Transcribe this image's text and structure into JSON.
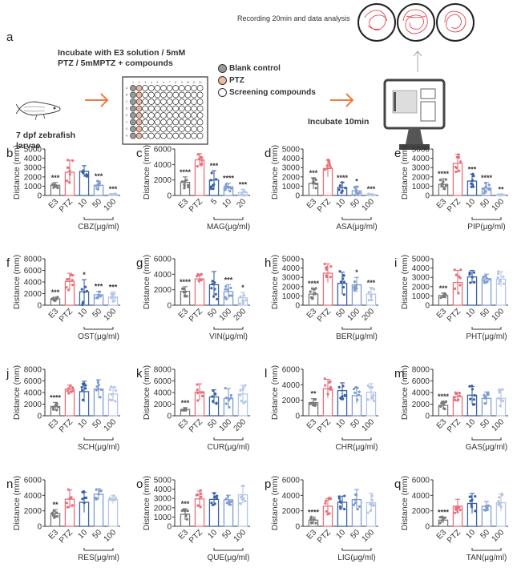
{
  "schematic": {
    "panel_label": "a",
    "step1_label": "7 dpf zebrafish larvae",
    "step2_label": "Incubate with E3 solution / 5mM PTZ / 5mMPTZ + compounds",
    "legend": [
      {
        "label": "Blank control",
        "color": "#9a9a9a"
      },
      {
        "label": "PTZ",
        "color": "#f0b8a0"
      },
      {
        "label": "Screening compounds",
        "color": "#ffffff"
      }
    ],
    "plate_columns": [
      "1",
      "2",
      "3",
      "4",
      "5",
      "6",
      "7",
      "8",
      "9",
      "10",
      "11",
      "12"
    ],
    "plate_rows": [
      "A",
      "B",
      "C",
      "D",
      "E",
      "F",
      "G",
      "H"
    ],
    "step3_label": "Incubate 10min",
    "step4_label": "Recording 20min and data analysis",
    "arrow_color": "#f07a3a",
    "track_color": "#e0303a"
  },
  "chart_data": [
    {
      "panel": "b",
      "type": "bar",
      "compound": "CBZ",
      "xlabel": "CBZ(μg/ml)",
      "ylabel": "Distance (mm)",
      "ylim": [
        0,
        5000
      ],
      "yticks": [
        0,
        1000,
        2000,
        3000,
        4000,
        5000
      ],
      "categories": [
        "E3",
        "PTZ",
        "10",
        "50",
        "100"
      ],
      "values": [
        1100,
        2500,
        2600,
        1100,
        100
      ],
      "errors": [
        300,
        1300,
        600,
        450,
        80
      ],
      "significance": [
        "***",
        "",
        "",
        "***",
        "***"
      ]
    },
    {
      "panel": "c",
      "type": "bar",
      "compound": "MAG",
      "xlabel": "MAG(μg/ml)",
      "ylabel": "Distance (mm)",
      "ylim": [
        0,
        6000
      ],
      "yticks": [
        0,
        2000,
        4000,
        6000
      ],
      "categories": [
        "E3",
        "PTZ",
        "5",
        "10",
        "20"
      ],
      "values": [
        1700,
        4600,
        2000,
        1100,
        400
      ],
      "errors": [
        700,
        800,
        1200,
        500,
        400
      ],
      "significance": [
        "****",
        "",
        "***",
        "****",
        "***"
      ]
    },
    {
      "panel": "d",
      "type": "bar",
      "compound": "ASA",
      "xlabel": "ASA(μg/ml)",
      "ylabel": "Distance (mm)",
      "ylim": [
        0,
        5000
      ],
      "yticks": [
        0,
        1000,
        2000,
        3000,
        4000,
        5000
      ],
      "categories": [
        "E3",
        "PTZ",
        "10",
        "50",
        "100"
      ],
      "values": [
        1300,
        2900,
        850,
        500,
        100
      ],
      "errors": [
        600,
        900,
        550,
        500,
        80
      ],
      "significance": [
        "***",
        "",
        "****",
        "*",
        "***"
      ]
    },
    {
      "panel": "e",
      "type": "bar",
      "compound": "PIP",
      "xlabel": "PIP(μg/ml)",
      "ylabel": "Distance (mm)",
      "ylim": [
        0,
        5000
      ],
      "yticks": [
        0,
        1000,
        2000,
        3000,
        4000,
        5000
      ],
      "categories": [
        "E3",
        "PTZ",
        "10",
        "50",
        "100"
      ],
      "values": [
        1200,
        3450,
        1550,
        800,
        80
      ],
      "errors": [
        600,
        1000,
        750,
        600,
        60
      ],
      "significance": [
        "****",
        "",
        "***",
        "****",
        "**"
      ]
    },
    {
      "panel": "f",
      "type": "bar",
      "compound": "OST",
      "xlabel": "OST(μg/ml)",
      "ylabel": "Distance (mm)",
      "ylim": [
        0,
        8000
      ],
      "yticks": [
        0,
        2000,
        4000,
        6000,
        8000
      ],
      "categories": [
        "E3",
        "PTZ",
        "10",
        "50",
        "100"
      ],
      "values": [
        1100,
        4100,
        2300,
        1800,
        1400
      ],
      "errors": [
        300,
        1400,
        2100,
        600,
        900
      ],
      "significance": [
        "***",
        "",
        "*",
        "***",
        "***"
      ]
    },
    {
      "panel": "g",
      "type": "bar",
      "compound": "VIN",
      "xlabel": "VIN(μg/ml)",
      "ylabel": "Distance (mm)",
      "ylim": [
        0,
        6000
      ],
      "yticks": [
        0,
        2000,
        4000,
        6000
      ],
      "categories": [
        "E3",
        "PTZ",
        "50",
        "100",
        "200"
      ],
      "values": [
        1800,
        3400,
        2650,
        1750,
        950
      ],
      "errors": [
        600,
        600,
        1700,
        900,
        700
      ],
      "significance": [
        "****",
        "",
        "",
        "***",
        "*"
      ]
    },
    {
      "panel": "h",
      "type": "bar",
      "compound": "BER",
      "xlabel": "BER(μg/ml)",
      "ylabel": "Distance (mm)",
      "ylim": [
        0,
        5000
      ],
      "yticks": [
        0,
        1000,
        2000,
        3000,
        4000,
        5000
      ],
      "categories": [
        "E3",
        "PTZ",
        "50",
        "100",
        "200"
      ],
      "values": [
        1200,
        3450,
        2350,
        2200,
        1200
      ],
      "errors": [
        600,
        1000,
        1200,
        800,
        700
      ],
      "significance": [
        "****",
        "",
        "",
        "*",
        "***"
      ]
    },
    {
      "panel": "i",
      "type": "bar",
      "compound": "PHT",
      "xlabel": "PHT(μg/ml)",
      "ylabel": "Distance (mm)",
      "ylim": [
        0,
        5000
      ],
      "yticks": [
        0,
        1000,
        2000,
        3000,
        4000,
        5000
      ],
      "categories": [
        "E3",
        "PTZ",
        "10",
        "50",
        "100"
      ],
      "values": [
        1050,
        2450,
        3050,
        2850,
        2800
      ],
      "errors": [
        250,
        1300,
        700,
        500,
        800
      ],
      "significance": [
        "***",
        "",
        "",
        "",
        ""
      ]
    },
    {
      "panel": "j",
      "type": "bar",
      "compound": "SCH",
      "xlabel": "SCH(μg/ml)",
      "ylabel": "Distance (mm)",
      "ylim": [
        0,
        8000
      ],
      "yticks": [
        0,
        2000,
        4000,
        6000,
        8000
      ],
      "categories": [
        "E3",
        "PTZ",
        "10",
        "50",
        "100"
      ],
      "values": [
        1600,
        4600,
        4150,
        4600,
        3750
      ],
      "errors": [
        700,
        700,
        1800,
        1600,
        1200
      ],
      "significance": [
        "****",
        "",
        "",
        "",
        ""
      ]
    },
    {
      "panel": "k",
      "type": "bar",
      "compound": "CUR",
      "xlabel": "CUR(μg/ml)",
      "ylabel": "Distance (mm)",
      "ylim": [
        0,
        8000
      ],
      "yticks": [
        0,
        2000,
        4000,
        6000,
        8000
      ],
      "categories": [
        "E3",
        "PTZ",
        "50",
        "100",
        "200"
      ],
      "values": [
        1100,
        4100,
        3250,
        3000,
        3750
      ],
      "errors": [
        300,
        1400,
        1200,
        1700,
        1500
      ],
      "significance": [
        "***",
        "",
        "",
        "",
        ""
      ]
    },
    {
      "panel": "l",
      "type": "bar",
      "compound": "CHR",
      "xlabel": "CHR(μg/ml)",
      "ylabel": "Distance (mm)",
      "ylim": [
        0,
        6000
      ],
      "yticks": [
        0,
        2000,
        4000,
        6000
      ],
      "categories": [
        "E3",
        "PTZ",
        "10",
        "50",
        "100"
      ],
      "values": [
        1700,
        3500,
        3250,
        2600,
        3050
      ],
      "errors": [
        500,
        1200,
        1000,
        1000,
        1100
      ],
      "significance": [
        "**",
        "",
        "",
        "",
        ""
      ]
    },
    {
      "panel": "m",
      "type": "bar",
      "compound": "GAS",
      "xlabel": "GAS(μg/ml)",
      "ylabel": "Distance (mm)",
      "ylim": [
        0,
        8000
      ],
      "yticks": [
        0,
        2000,
        4000,
        6000,
        8000
      ],
      "categories": [
        "E3",
        "PTZ",
        "10",
        "50",
        "100"
      ],
      "values": [
        1800,
        3300,
        3550,
        3000,
        3000
      ],
      "errors": [
        700,
        700,
        1500,
        1100,
        1600
      ],
      "significance": [
        "****",
        "",
        "",
        "",
        ""
      ]
    },
    {
      "panel": "n",
      "type": "bar",
      "compound": "RES",
      "xlabel": "RES(μg/ml)",
      "ylabel": "Distance (mm)",
      "ylim": [
        0,
        6000
      ],
      "yticks": [
        0,
        2000,
        4000,
        6000
      ],
      "categories": [
        "E3",
        "PTZ",
        "10",
        "50",
        "100"
      ],
      "values": [
        1650,
        3500,
        3100,
        4150,
        3450
      ],
      "errors": [
        500,
        1200,
        1300,
        700,
        500
      ],
      "significance": [
        "**",
        "",
        "",
        "",
        ""
      ]
    },
    {
      "panel": "o",
      "type": "bar",
      "compound": "QUE",
      "xlabel": "QUE(μg/ml)",
      "ylabel": "Distance (mm)",
      "ylim": [
        0,
        5000
      ],
      "yticks": [
        0,
        1000,
        2000,
        3000,
        4000,
        5000
      ],
      "categories": [
        "E3",
        "PTZ",
        "10",
        "50",
        "100"
      ],
      "values": [
        1300,
        2950,
        2900,
        2850,
        3400
      ],
      "errors": [
        600,
        850,
        700,
        500,
        900
      ],
      "significance": [
        "***",
        "",
        "",
        "",
        ""
      ]
    },
    {
      "panel": "p",
      "type": "bar",
      "compound": "LIG",
      "xlabel": "LIG(μg/ml)",
      "ylabel": "Distance (mm)",
      "ylim": [
        0,
        6000
      ],
      "yticks": [
        0,
        2000,
        4000,
        6000
      ],
      "categories": [
        "E3",
        "PTZ",
        "10",
        "50",
        "100"
      ],
      "values": [
        800,
        2600,
        3100,
        3450,
        3050
      ],
      "errors": [
        400,
        1000,
        800,
        1300,
        1200
      ],
      "significance": [
        "****",
        "",
        "",
        "",
        ""
      ]
    },
    {
      "panel": "q",
      "type": "bar",
      "compound": "TAN",
      "xlabel": "TAN(μg/ml)",
      "ylabel": "Distance (mm)",
      "ylim": [
        0,
        6000
      ],
      "yticks": [
        0,
        2000,
        4000,
        6000
      ],
      "categories": [
        "E3",
        "PTZ",
        "10",
        "50",
        "100"
      ],
      "values": [
        800,
        2600,
        2950,
        2600,
        3050
      ],
      "errors": [
        400,
        900,
        1300,
        600,
        1100
      ],
      "significance": [
        "****",
        "",
        "",
        "",
        ""
      ]
    }
  ],
  "series_colors": {
    "E3": "#7a7a7a",
    "PTZ": "#e8707a",
    "dose1": "#3a62a8",
    "dose2": "#7f9ccf",
    "dose3": "#b5c6e6"
  }
}
